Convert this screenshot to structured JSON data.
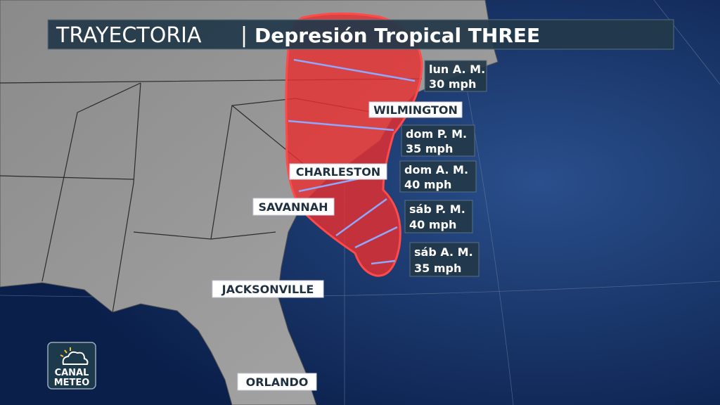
{
  "header": {
    "title_light": "TRAYECTORIA",
    "separator": "|",
    "title_bold": "Depresión Tropical THREE"
  },
  "forecast_points": [
    {
      "time": "lun A. M.",
      "wind": "30 mph"
    },
    {
      "time": "dom P. M.",
      "wind": "35 mph"
    },
    {
      "time": "dom A. M.",
      "wind": "40 mph"
    },
    {
      "time": "sáb P. M.",
      "wind": "40 mph"
    },
    {
      "time": "sáb A. M.",
      "wind": "35 mph"
    }
  ],
  "cities": [
    {
      "label": "WILMINGTON"
    },
    {
      "label": "CHARLESTON"
    },
    {
      "label": "SAVANNAH"
    },
    {
      "label": "JACKSONVILLE"
    },
    {
      "label": "ORLANDO"
    }
  ],
  "logo": {
    "line1": "CANAL",
    "line2": "METEO"
  }
}
